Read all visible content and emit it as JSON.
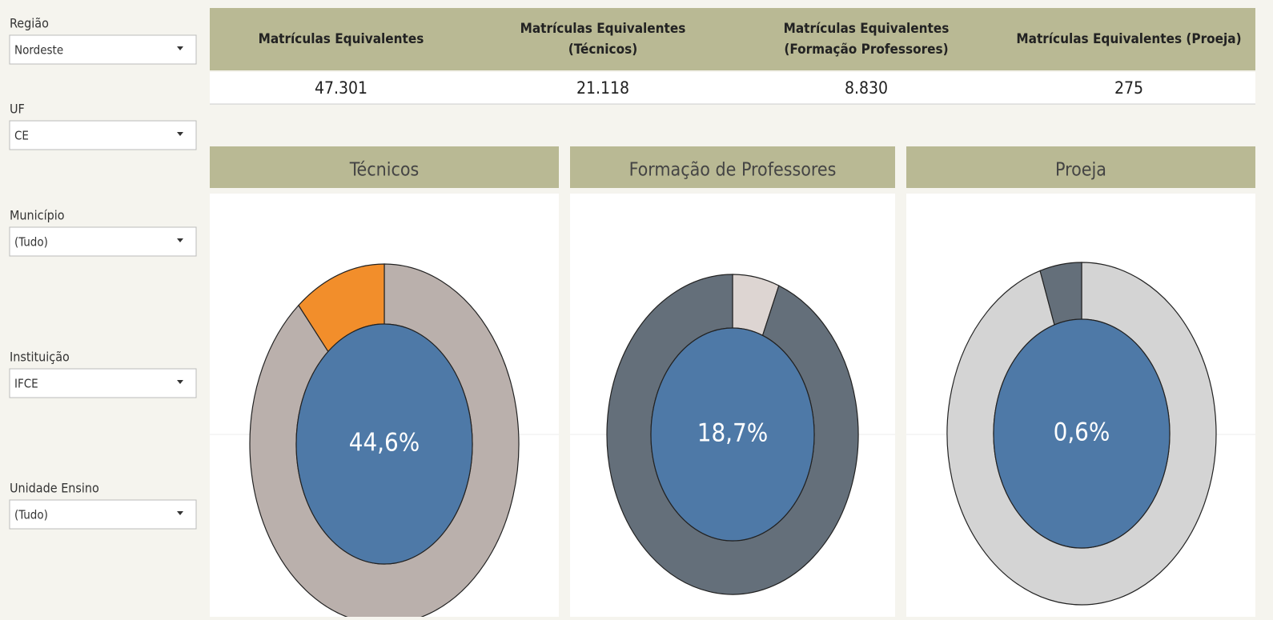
{
  "filters": [
    {
      "label": "Região",
      "value": "Nordeste"
    },
    {
      "label": "UF",
      "value": "CE"
    },
    {
      "label": "Município",
      "value": "(Tudo)"
    },
    {
      "label": "Instituição",
      "value": "IFCE"
    },
    {
      "label": "Unidade Ensino",
      "value": "(Tudo)"
    }
  ],
  "kpis": [
    {
      "header": [
        "Matrículas Equivalentes"
      ],
      "value": "47.301"
    },
    {
      "header": [
        "Matrículas Equivalentes",
        "(Técnicos)"
      ],
      "value": "21.118"
    },
    {
      "header": [
        "Matrículas Equivalentes",
        "(Formação Professores)"
      ],
      "value": "8.830"
    },
    {
      "header": [
        "Matrículas Equivalentes (Proeja)"
      ],
      "value": "275"
    }
  ],
  "donuts": [
    {
      "title": "Técnicos",
      "center_label": "44,6%",
      "values": [
        89,
        11
      ],
      "colors": [
        "#bab0ac",
        "#f28e2b"
      ],
      "center_color": "#4e79a7"
    },
    {
      "title": "Formação de Professores",
      "center_label": "18,7%",
      "values": [
        6,
        94
      ],
      "colors": [
        "#ddd5d2",
        "#646f7a"
      ],
      "center_color": "#4e79a7"
    },
    {
      "title": "Proeja",
      "center_label": "0,6%",
      "values": [
        95,
        5
      ],
      "colors": [
        "#d4d4d4",
        "#646f7a"
      ],
      "center_color": "#4e79a7"
    }
  ]
}
